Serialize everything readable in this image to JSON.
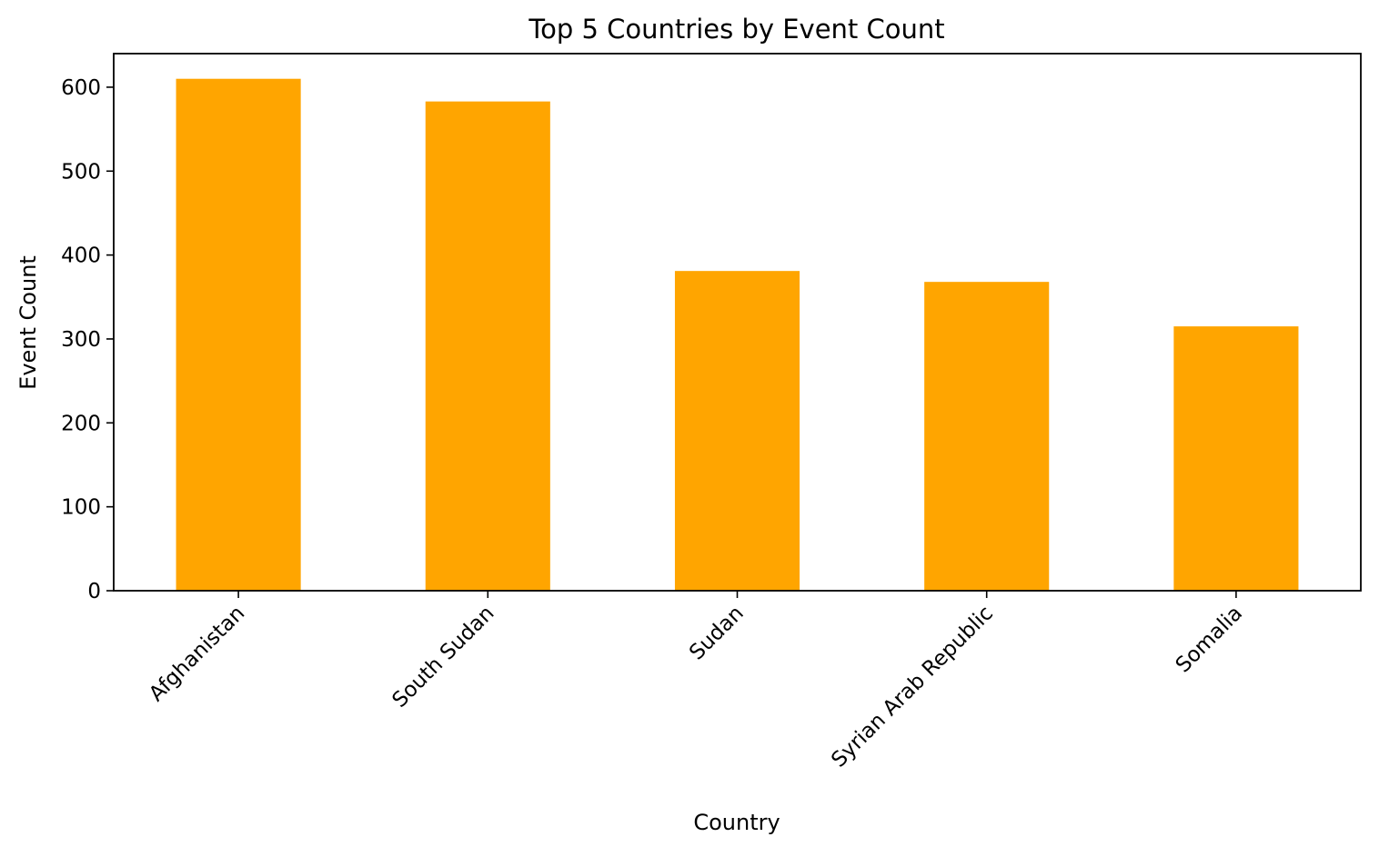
{
  "chart_data": {
    "type": "bar",
    "title": "Top 5 Countries by Event Count",
    "xlabel": "Country",
    "ylabel": "Event Count",
    "categories": [
      "Afghanistan",
      "South Sudan",
      "Sudan",
      "Syrian Arab Republic",
      "Somalia"
    ],
    "values": [
      610,
      583,
      381,
      368,
      315
    ],
    "ylim": [
      0,
      640
    ],
    "yticks": [
      0,
      100,
      200,
      300,
      400,
      500,
      600
    ],
    "bar_color": "#FFA500",
    "grid": false,
    "legend": "none"
  }
}
